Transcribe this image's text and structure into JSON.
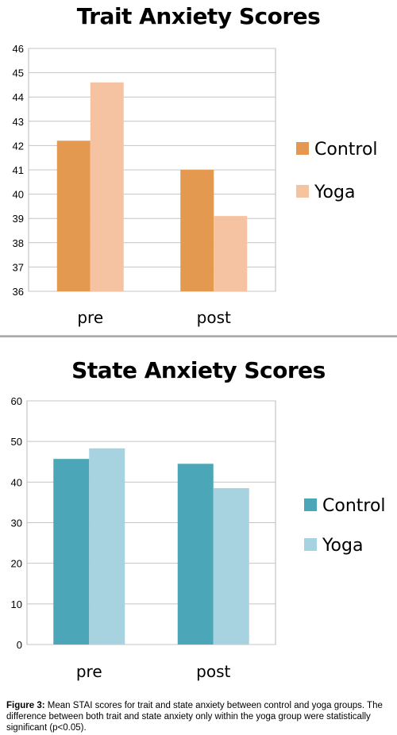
{
  "chart_data": [
    {
      "type": "bar",
      "title": "Trait Anxiety Scores",
      "categories": [
        "pre",
        "post"
      ],
      "series": [
        {
          "name": "Control",
          "values": [
            42.2,
            41.0
          ],
          "color": "#e3994f"
        },
        {
          "name": "Yoga",
          "values": [
            44.6,
            39.1
          ],
          "color": "#f5c3a2"
        }
      ],
      "ylim": [
        36,
        46
      ],
      "yticks": [
        36,
        37,
        38,
        39,
        40,
        41,
        42,
        43,
        44,
        45,
        46
      ],
      "grid": true,
      "legend": "right"
    },
    {
      "type": "bar",
      "title": "State Anxiety Scores",
      "categories": [
        "pre",
        "post"
      ],
      "series": [
        {
          "name": "Control",
          "values": [
            45.7,
            44.5
          ],
          "color": "#4ba7b8"
        },
        {
          "name": "Yoga",
          "values": [
            48.3,
            38.5
          ],
          "color": "#a7d2e0"
        }
      ],
      "ylim": [
        0,
        60
      ],
      "yticks": [
        0,
        10,
        20,
        30,
        40,
        50,
        60
      ],
      "grid": true,
      "legend": "right"
    }
  ],
  "caption": {
    "label": "Figure 3:",
    "text": " Mean STAI scores for trait and state anxiety between control and yoga groups. The difference between both trait and state anxiety only within the yoga group were statistically significant (p<0.05)."
  }
}
